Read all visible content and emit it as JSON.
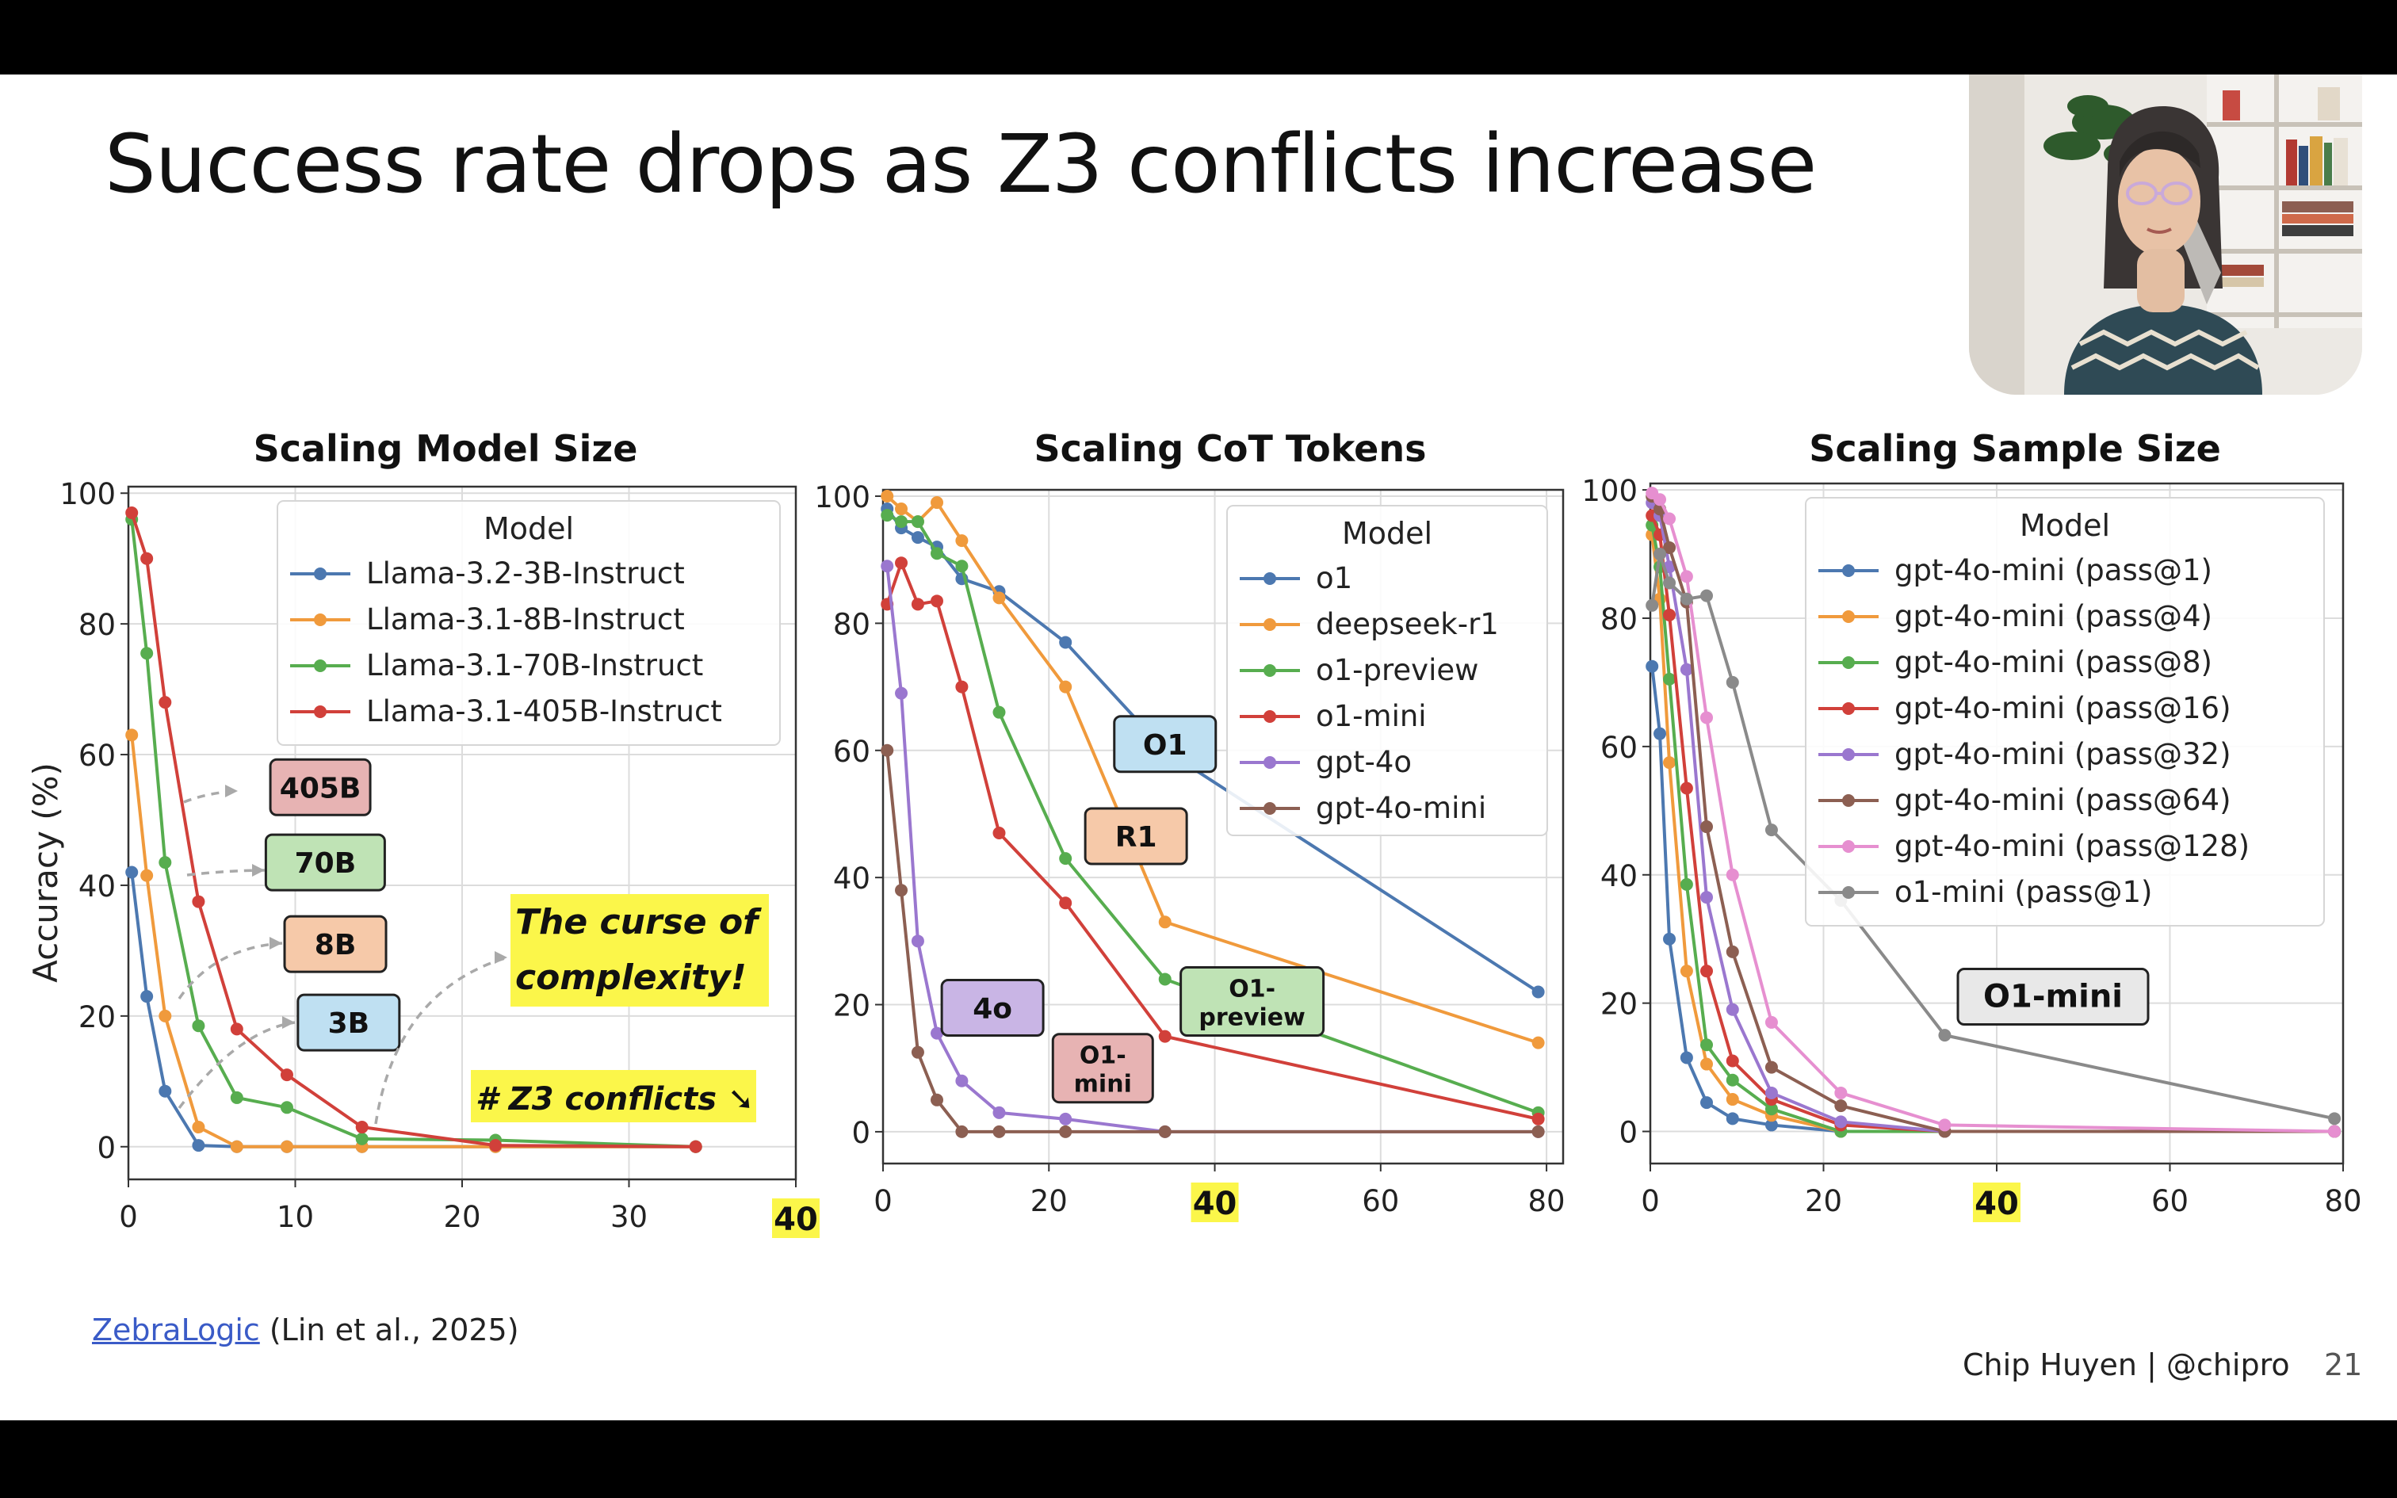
{
  "slide": {
    "title": "Success rate drops as Z3 conflicts increase",
    "citation_link": "ZebraLogic",
    "citation_text": "(Lin et al., 2025)",
    "footer": "Chip Huyen | @chipro",
    "page": "21"
  },
  "colors": {
    "blue": "#4c78b0",
    "orange": "#f09a3c",
    "green": "#57ad4f",
    "red": "#d1403a",
    "purple": "#9a77cf",
    "brown": "#8c5f52",
    "pink": "#e68fd0",
    "gray": "#8a8a8a",
    "highlight": "#fbf64a"
  },
  "chart_data": [
    {
      "type": "line",
      "title": "Scaling Model Size",
      "ylabel": "Accuracy (%)",
      "xlabel": "",
      "xlim": [
        0,
        40
      ],
      "ylim": [
        -5,
        101
      ],
      "xticks": [
        "0",
        "10",
        "20",
        "30",
        "40"
      ],
      "yticks": [
        "0",
        "20",
        "40",
        "60",
        "80",
        "100"
      ],
      "highlighted_tick": "40",
      "grid": true,
      "legend_title": "Model",
      "legend_position": "top-right",
      "series": [
        {
          "name": "Llama-3.2-3B-Instruct",
          "color": "#4c78b0",
          "points": [
            [
              0.2,
              42
            ],
            [
              1.1,
              23
            ],
            [
              2.2,
              8.5
            ],
            [
              4.2,
              0.2
            ],
            [
              6.5,
              0
            ],
            [
              9.5,
              0
            ],
            [
              14,
              0
            ],
            [
              22,
              0
            ],
            [
              34,
              0
            ]
          ]
        },
        {
          "name": "Llama-3.1-8B-Instruct",
          "color": "#f09a3c",
          "points": [
            [
              0.2,
              63
            ],
            [
              1.1,
              41.5
            ],
            [
              2.2,
              20
            ],
            [
              4.2,
              3
            ],
            [
              6.5,
              0
            ],
            [
              9.5,
              0
            ],
            [
              14,
              0
            ],
            [
              22,
              0
            ],
            [
              34,
              0
            ]
          ]
        },
        {
          "name": "Llama-3.1-70B-Instruct",
          "color": "#57ad4f",
          "points": [
            [
              0.2,
              96
            ],
            [
              1.1,
              75.5
            ],
            [
              2.2,
              43.5
            ],
            [
              4.2,
              18.5
            ],
            [
              6.5,
              7.5
            ],
            [
              9.5,
              6
            ],
            [
              14,
              1.2
            ],
            [
              22,
              1
            ],
            [
              34,
              0
            ]
          ]
        },
        {
          "name": "Llama-3.1-405B-Instruct",
          "color": "#d1403a",
          "points": [
            [
              0.2,
              97
            ],
            [
              1.1,
              90
            ],
            [
              2.2,
              68
            ],
            [
              4.2,
              37.5
            ],
            [
              6.5,
              18
            ],
            [
              9.5,
              11
            ],
            [
              14,
              3
            ],
            [
              22,
              0.2
            ],
            [
              34,
              0
            ]
          ]
        }
      ],
      "annotations": [
        {
          "text": "405B",
          "color": "#e7b3b3",
          "x": 11.5,
          "y": 55
        },
        {
          "text": "70B",
          "color": "#bfe3b5",
          "x": 11.8,
          "y": 43.5
        },
        {
          "text": "8B",
          "color": "#f6c9a9",
          "x": 12.4,
          "y": 31
        },
        {
          "text": "3B",
          "color": "#bfe0f2",
          "x": 13.2,
          "y": 19
        }
      ],
      "callouts": [
        "The curse of",
        "complexity!",
        "# Z3 conflicts ➘"
      ]
    },
    {
      "type": "line",
      "title": "Scaling CoT Tokens",
      "xlim": [
        0,
        82
      ],
      "ylim": [
        -5,
        101
      ],
      "xticks": [
        "0",
        "20",
        "40",
        "60",
        "80"
      ],
      "yticks": [
        "0",
        "20",
        "40",
        "60",
        "80",
        "100"
      ],
      "highlighted_tick": "40",
      "grid": true,
      "legend_title": "Model",
      "legend_position": "top-right",
      "series": [
        {
          "name": "o1",
          "color": "#4c78b0",
          "points": [
            [
              0.5,
              98
            ],
            [
              2.2,
              95
            ],
            [
              4.2,
              93.5
            ],
            [
              6.5,
              92
            ],
            [
              9.5,
              87
            ],
            [
              14,
              85
            ],
            [
              22,
              77
            ],
            [
              34,
              60
            ],
            [
              79,
              22
            ]
          ]
        },
        {
          "name": "deepseek-r1",
          "color": "#f09a3c",
          "points": [
            [
              0.5,
              100
            ],
            [
              2.2,
              98
            ],
            [
              4.2,
              96
            ],
            [
              6.5,
              99
            ],
            [
              9.5,
              93
            ],
            [
              14,
              84
            ],
            [
              22,
              70
            ],
            [
              34,
              33
            ],
            [
              79,
              14
            ]
          ]
        },
        {
          "name": "o1-preview",
          "color": "#57ad4f",
          "points": [
            [
              0.5,
              97
            ],
            [
              2.2,
              96
            ],
            [
              4.2,
              96
            ],
            [
              6.5,
              91
            ],
            [
              9.5,
              89
            ],
            [
              14,
              66
            ],
            [
              22,
              43
            ],
            [
              34,
              24
            ],
            [
              79,
              3
            ]
          ]
        },
        {
          "name": "o1-mini",
          "color": "#d1403a",
          "points": [
            [
              0.5,
              83
            ],
            [
              2.2,
              89.5
            ],
            [
              4.2,
              83
            ],
            [
              6.5,
              83.5
            ],
            [
              9.5,
              70
            ],
            [
              14,
              47
            ],
            [
              22,
              36
            ],
            [
              34,
              15
            ],
            [
              79,
              2
            ]
          ]
        },
        {
          "name": "gpt-4o",
          "color": "#9a77cf",
          "points": [
            [
              0.5,
              89
            ],
            [
              2.2,
              69
            ],
            [
              4.2,
              30
            ],
            [
              6.5,
              15.5
            ],
            [
              9.5,
              8
            ],
            [
              14,
              3
            ],
            [
              22,
              2
            ],
            [
              34,
              0
            ],
            [
              79,
              0
            ]
          ]
        },
        {
          "name": "gpt-4o-mini",
          "color": "#8c5f52",
          "points": [
            [
              0.5,
              60
            ],
            [
              2.2,
              38
            ],
            [
              4.2,
              12.5
            ],
            [
              6.5,
              5
            ],
            [
              9.5,
              0
            ],
            [
              14,
              0
            ],
            [
              22,
              0
            ],
            [
              34,
              0
            ],
            [
              79,
              0
            ]
          ]
        }
      ],
      "annotations": [
        {
          "text": "O1",
          "color": "#bfe0f2",
          "x": 34,
          "y": 61
        },
        {
          "text": "R1",
          "color": "#f6c9a9",
          "x": 30.5,
          "y": 46.5
        },
        {
          "text": "4o",
          "color": "#c9b5e5",
          "x": 13.2,
          "y": 19.5
        },
        {
          "text": "O1-",
          "text2": "mini",
          "color": "#e7b3b3",
          "x": 26.5,
          "y": 10
        },
        {
          "text": "O1-",
          "text2": "preview",
          "color": "#bfe3b5",
          "x": 44.5,
          "y": 20.5
        }
      ]
    },
    {
      "type": "line",
      "title": "Scaling Sample Size",
      "xlim": [
        0,
        80
      ],
      "ylim": [
        -5,
        101
      ],
      "xticks": [
        "0",
        "20",
        "40",
        "60",
        "80"
      ],
      "yticks": [
        "0",
        "20",
        "40",
        "60",
        "80",
        "100"
      ],
      "highlighted_tick": "40",
      "grid": true,
      "legend_title": "Model",
      "legend_position": "top-right",
      "series": [
        {
          "name": "gpt-4o-mini (pass@1)",
          "color": "#4c78b0",
          "points": [
            [
              0.2,
              72.5
            ],
            [
              1.1,
              62
            ],
            [
              2.2,
              30
            ],
            [
              4.2,
              11.5
            ],
            [
              6.5,
              4.5
            ],
            [
              9.5,
              2
            ],
            [
              14,
              1
            ],
            [
              22,
              0
            ],
            [
              34,
              0
            ],
            [
              79,
              0
            ]
          ]
        },
        {
          "name": "gpt-4o-mini (pass@4)",
          "color": "#f09a3c",
          "points": [
            [
              0.2,
              93
            ],
            [
              1.1,
              83
            ],
            [
              2.2,
              57.5
            ],
            [
              4.2,
              25
            ],
            [
              6.5,
              10.5
            ],
            [
              9.5,
              5
            ],
            [
              14,
              2.5
            ],
            [
              22,
              0
            ],
            [
              34,
              0
            ],
            [
              79,
              0
            ]
          ]
        },
        {
          "name": "gpt-4o-mini (pass@8)",
          "color": "#57ad4f",
          "points": [
            [
              0.2,
              94.5
            ],
            [
              1.1,
              88
            ],
            [
              2.2,
              70.5
            ],
            [
              4.2,
              38.5
            ],
            [
              6.5,
              13.5
            ],
            [
              9.5,
              8
            ],
            [
              14,
              3.5
            ],
            [
              22,
              0
            ],
            [
              34,
              0
            ],
            [
              79,
              0
            ]
          ]
        },
        {
          "name": "gpt-4o-mini (pass@16)",
          "color": "#d1403a",
          "points": [
            [
              0.2,
              96
            ],
            [
              1.1,
              93
            ],
            [
              2.2,
              80.5
            ],
            [
              4.2,
              53.5
            ],
            [
              6.5,
              25
            ],
            [
              9.5,
              11
            ],
            [
              14,
              5
            ],
            [
              22,
              1
            ],
            [
              34,
              0
            ],
            [
              79,
              0
            ]
          ]
        },
        {
          "name": "gpt-4o-mini (pass@32)",
          "color": "#9a77cf",
          "points": [
            [
              0.2,
              98
            ],
            [
              1.1,
              96
            ],
            [
              2.2,
              88
            ],
            [
              4.2,
              72
            ],
            [
              6.5,
              36.5
            ],
            [
              9.5,
              19
            ],
            [
              14,
              6
            ],
            [
              22,
              1.5
            ],
            [
              34,
              0
            ],
            [
              79,
              0
            ]
          ]
        },
        {
          "name": "gpt-4o-mini (pass@64)",
          "color": "#8c5f52",
          "points": [
            [
              0.2,
              99
            ],
            [
              1.1,
              97
            ],
            [
              2.2,
              91
            ],
            [
              4.2,
              82.5
            ],
            [
              6.5,
              47.5
            ],
            [
              9.5,
              28
            ],
            [
              14,
              10
            ],
            [
              22,
              4
            ],
            [
              34,
              0
            ],
            [
              79,
              0
            ]
          ]
        },
        {
          "name": "gpt-4o-mini (pass@128)",
          "color": "#e68fd0",
          "points": [
            [
              0.2,
              99.5
            ],
            [
              1.1,
              98.5
            ],
            [
              2.2,
              95.5
            ],
            [
              4.2,
              86.5
            ],
            [
              6.5,
              64.5
            ],
            [
              9.5,
              40
            ],
            [
              14,
              17
            ],
            [
              22,
              6
            ],
            [
              34,
              1
            ],
            [
              79,
              0
            ]
          ]
        },
        {
          "name": "o1-mini (pass@1)",
          "color": "#8a8a8a",
          "points": [
            [
              0.2,
              82
            ],
            [
              1.1,
              90
            ],
            [
              2.2,
              85.5
            ],
            [
              4.2,
              83
            ],
            [
              6.5,
              83.5
            ],
            [
              9.5,
              70
            ],
            [
              14,
              47
            ],
            [
              22,
              36
            ],
            [
              34,
              15
            ],
            [
              79,
              2
            ]
          ]
        }
      ],
      "annotations": [
        {
          "text": "O1-mini",
          "color": "#e8e8e8",
          "x": 46.5,
          "y": 21
        }
      ]
    }
  ]
}
